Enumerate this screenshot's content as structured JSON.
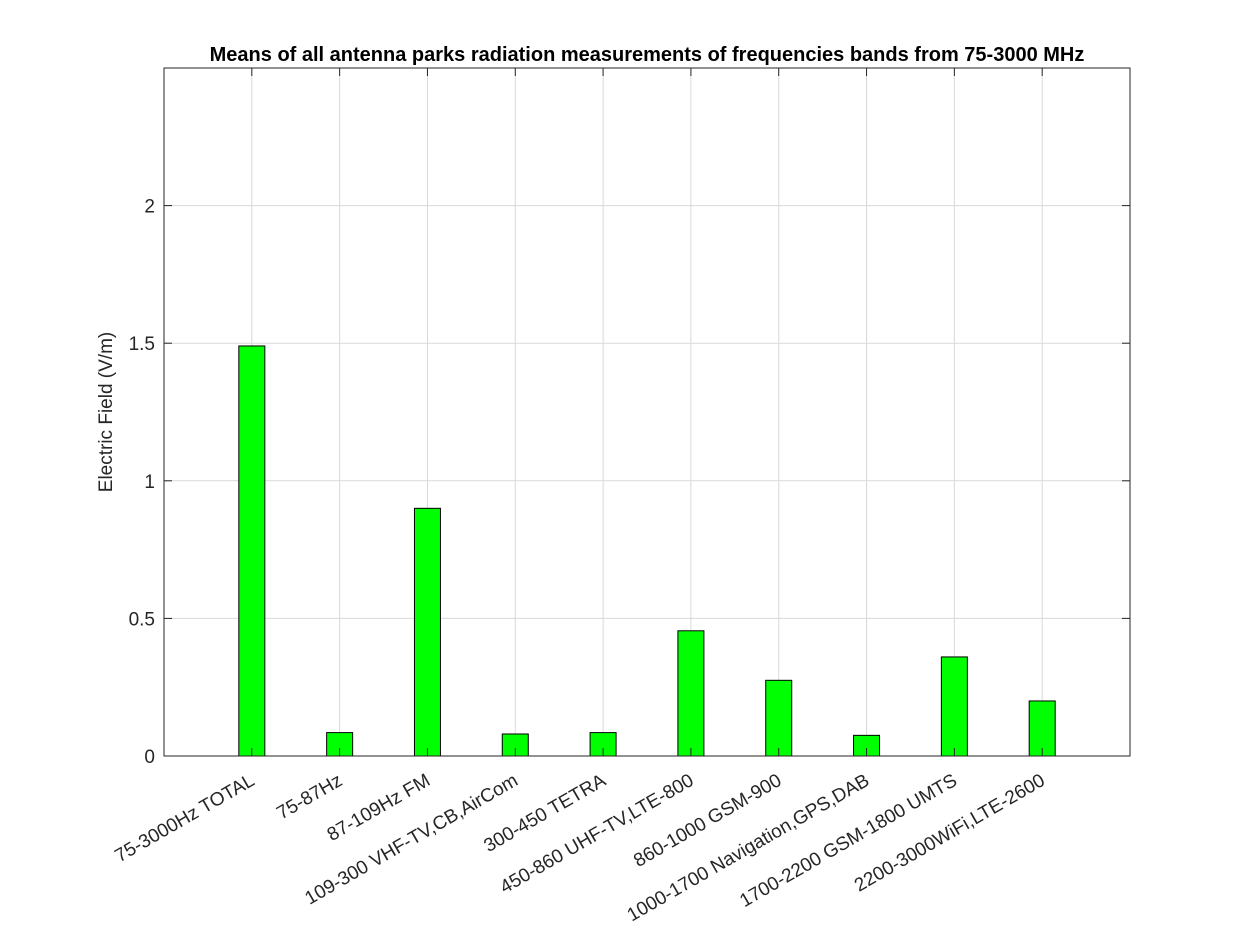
{
  "chart_data": {
    "type": "bar",
    "title": "Means of all antenna parks radiation measurements of frequencies bands from 75-3000 MHz",
    "xlabel": "",
    "ylabel": "Electric Field (V/m)",
    "ylim": [
      0,
      2.5
    ],
    "yticks": [
      0,
      0.5,
      1,
      1.5,
      2
    ],
    "ytick_labels": [
      "0",
      "0.5",
      "1",
      "1.5",
      "2"
    ],
    "grid": true,
    "bar_color": "#00ff00",
    "categories": [
      "75-3000Hz TOTAL",
      "75-87Hz",
      "87-109Hz FM",
      "109-300 VHF-TV,CB,AirCom",
      "300-450 TETRA",
      "450-860 UHF-TV,LTE-800",
      "860-1000 GSM-900",
      "1000-1700 Navigation,GPS,DAB",
      "1700-2200 GSM-1800 UMTS",
      "2200-3000WiFi,LTE-2600"
    ],
    "values": [
      1.49,
      0.085,
      0.9,
      0.08,
      0.085,
      0.455,
      0.275,
      0.075,
      0.36,
      0.2
    ]
  }
}
